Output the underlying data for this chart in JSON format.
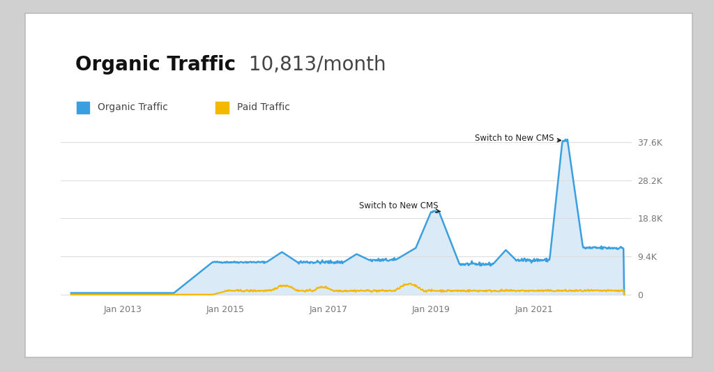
{
  "title_bold": "Organic Traffic",
  "title_light": " 10,813/month",
  "background_color": "#d0d0d0",
  "card_background": "#ffffff",
  "card_edge_color": "#bbbbbb",
  "plot_bg_color": "#ffffff",
  "fill_color": "#daeaf7",
  "organic_line_color": "#3a9fe0",
  "paid_line_color": "#f5b800",
  "legend_organic": "Organic Traffic",
  "legend_paid": "Paid Traffic",
  "annotation1_text": "Switch to New CMS",
  "annotation2_text": "Switch to New CMS",
  "yticks": [
    0,
    9400,
    18800,
    28200,
    37600
  ],
  "ytick_labels": [
    "0",
    "9.4K",
    "18.8K",
    "28.2K",
    "37.6K"
  ],
  "xtick_labels": [
    "Jan 2013",
    "Jan 2015",
    "Jan 2017",
    "Jan 2019",
    "Jan 2021"
  ],
  "xtick_positions": [
    2013,
    2015,
    2017,
    2019,
    2021
  ],
  "grid_color": "#dddddd",
  "annotation_color": "#222222",
  "axis_label_color": "#777777",
  "title_bold_color": "#111111",
  "title_light_color": "#444444"
}
